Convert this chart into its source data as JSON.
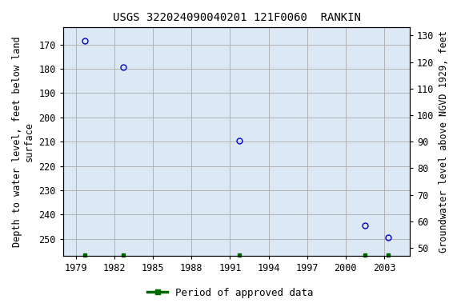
{
  "title": "USGS 322024090040201 121F0060  RANKIN",
  "data_x": [
    1979.7,
    1982.7,
    1991.7,
    2001.5,
    2003.3
  ],
  "data_y": [
    168.5,
    179.5,
    209.5,
    244.5,
    249.5
  ],
  "approved_x": [
    1979.7,
    1982.7,
    1991.7,
    2001.5,
    2003.3
  ],
  "xlim": [
    1978.0,
    2005.0
  ],
  "xticks": [
    1979,
    1982,
    1985,
    1988,
    1991,
    1994,
    1997,
    2000,
    2003
  ],
  "ylim_top": 163,
  "ylim_bottom": 257,
  "ylim_left_ticks": [
    170,
    180,
    190,
    200,
    210,
    220,
    230,
    240,
    250
  ],
  "ylim_right_top": 133,
  "ylim_right_bottom": 47,
  "ylim_right_ticks": [
    130,
    120,
    110,
    100,
    90,
    80,
    70,
    60,
    50
  ],
  "ylabel_left": "Depth to water level, feet below land\nsurface",
  "ylabel_right": "Groundwater level above NGVD 1929, feet",
  "legend_label": "Period of approved data",
  "plot_bg_color": "#dce9f5",
  "fig_bg_color": "#ffffff",
  "grid_color": "#aaaaaa",
  "point_color": "#0000cc",
  "approved_color": "#006600",
  "title_fontsize": 10,
  "axis_label_fontsize": 8.5,
  "tick_fontsize": 8.5,
  "legend_fontsize": 9
}
